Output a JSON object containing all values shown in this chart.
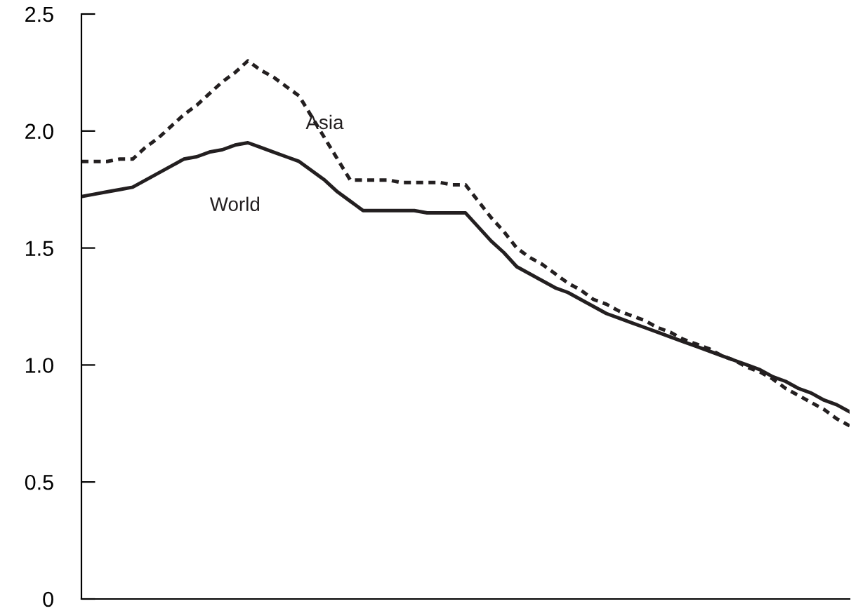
{
  "chart_data": {
    "type": "line",
    "categories": [
      null,
      null,
      null,
      null,
      null,
      null,
      null,
      null,
      null,
      null,
      null,
      null,
      null,
      null,
      null,
      null,
      null,
      null,
      null,
      null,
      null,
      null,
      null,
      null,
      null,
      null,
      null,
      null,
      null,
      null,
      null,
      null,
      null,
      null,
      null,
      null,
      null,
      null,
      null,
      null,
      null,
      null,
      null,
      null,
      null,
      null,
      null,
      null,
      null,
      null,
      null,
      null,
      null,
      null,
      null,
      null,
      null,
      null,
      null,
      null,
      null
    ],
    "ylim": [
      0,
      2.5
    ],
    "yticks": [
      0,
      0.5,
      {
        "value": 1,
        "label": "1.0"
      },
      1.5,
      {
        "value": 2,
        "label": "2.0"
      },
      2.5
    ],
    "tick_labels": "y",
    "grid": false,
    "series": [
      {
        "name": "World",
        "color": "#231f20",
        "line_style": "solid",
        "values": [
          1.72,
          1.73,
          1.74,
          1.75,
          1.76,
          1.79,
          1.82,
          1.85,
          1.88,
          1.89,
          1.91,
          1.92,
          1.94,
          1.95,
          1.93,
          1.91,
          1.89,
          1.87,
          1.83,
          1.79,
          1.74,
          1.7,
          1.66,
          1.66,
          1.66,
          1.66,
          1.66,
          1.65,
          1.65,
          1.65,
          1.65,
          1.59,
          1.53,
          1.48,
          1.42,
          1.39,
          1.36,
          1.33,
          1.31,
          1.28,
          1.25,
          1.22,
          1.2,
          1.18,
          1.16,
          1.14,
          1.12,
          1.1,
          1.08,
          1.06,
          1.04,
          1.02,
          1.0,
          0.98,
          0.95,
          0.93,
          0.9,
          0.88,
          0.85,
          0.83,
          0.8
        ]
      },
      {
        "name": "Asia",
        "color": "#231f20",
        "line_style": "dotted",
        "values": [
          1.87,
          1.87,
          1.87,
          1.88,
          1.88,
          1.93,
          1.97,
          2.02,
          2.07,
          2.11,
          2.16,
          2.21,
          2.25,
          2.3,
          2.26,
          2.23,
          2.19,
          2.15,
          2.06,
          1.97,
          1.88,
          1.79,
          1.79,
          1.79,
          1.79,
          1.78,
          1.78,
          1.78,
          1.78,
          1.77,
          1.77,
          1.7,
          1.63,
          1.57,
          1.5,
          1.46,
          1.43,
          1.39,
          1.35,
          1.32,
          1.28,
          1.26,
          1.23,
          1.21,
          1.19,
          1.16,
          1.14,
          1.11,
          1.09,
          1.07,
          1.04,
          1.02,
          0.99,
          0.97,
          0.94,
          0.9,
          0.87,
          0.84,
          0.81,
          0.77,
          0.74
        ]
      }
    ]
  }
}
